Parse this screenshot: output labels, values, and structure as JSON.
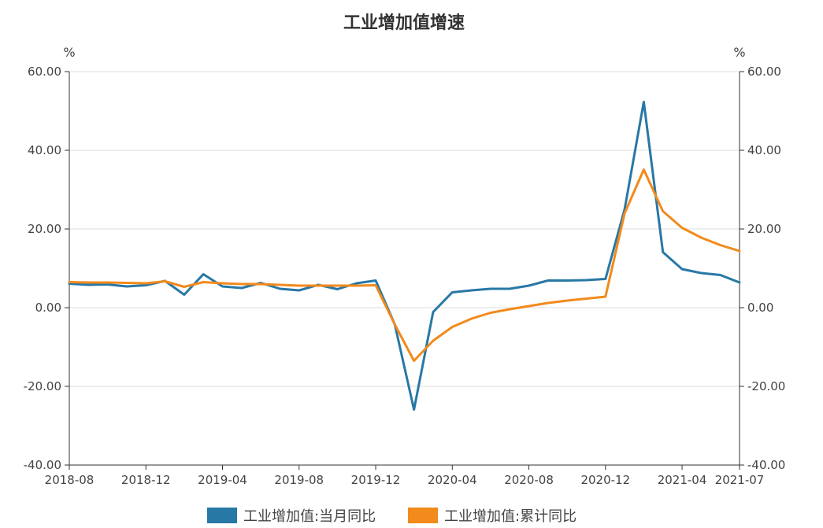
{
  "chart_data": {
    "type": "line",
    "title": "工业增加值增速",
    "y_unit_left": "%",
    "y_unit_right": "%",
    "ylim": [
      -40,
      60
    ],
    "yticks": [
      "60.00",
      "40.00",
      "20.00",
      "0.00",
      "-20.00",
      "-40.00"
    ],
    "x": [
      "2018-08",
      "2018-09",
      "2018-10",
      "2018-11",
      "2018-12",
      "2019-01",
      "2019-02",
      "2019-03",
      "2019-04",
      "2019-05",
      "2019-06",
      "2019-07",
      "2019-08",
      "2019-09",
      "2019-10",
      "2019-11",
      "2019-12",
      "2020-01",
      "2020-02",
      "2020-03",
      "2020-04",
      "2020-05",
      "2020-06",
      "2020-07",
      "2020-08",
      "2020-09",
      "2020-10",
      "2020-11",
      "2020-12",
      "2021-01",
      "2021-02",
      "2021-03",
      "2021-04",
      "2021-05",
      "2021-06",
      "2021-07"
    ],
    "xticks": [
      "2018-08",
      "2018-12",
      "2019-04",
      "2019-08",
      "2019-12",
      "2020-04",
      "2020-08",
      "2020-12",
      "2021-04",
      "2021-07"
    ],
    "series": [
      {
        "name": "工业增加值:当月同比",
        "color": "#2878a5",
        "values": [
          6.1,
          5.8,
          5.9,
          5.4,
          5.7,
          6.8,
          3.3,
          8.5,
          5.4,
          5.0,
          6.3,
          4.8,
          4.4,
          5.8,
          4.7,
          6.2,
          6.9,
          -4.3,
          -25.9,
          -1.1,
          3.9,
          4.4,
          4.8,
          4.8,
          5.6,
          6.9,
          6.9,
          7.0,
          7.3,
          25.0,
          52.3,
          14.1,
          9.8,
          8.8,
          8.3,
          6.4
        ]
      },
      {
        "name": "工业增加值:累计同比",
        "color": "#f28a1c",
        "values": [
          6.5,
          6.4,
          6.4,
          6.3,
          6.2,
          6.7,
          5.3,
          6.5,
          6.2,
          6.0,
          6.0,
          5.8,
          5.6,
          5.6,
          5.6,
          5.6,
          5.7,
          -4.3,
          -13.5,
          -8.4,
          -4.9,
          -2.8,
          -1.3,
          -0.4,
          0.4,
          1.2,
          1.8,
          2.3,
          2.8,
          24.0,
          35.1,
          24.5,
          20.3,
          17.8,
          15.9,
          14.4
        ]
      }
    ],
    "legend_position": "bottom-center",
    "grid": true
  }
}
